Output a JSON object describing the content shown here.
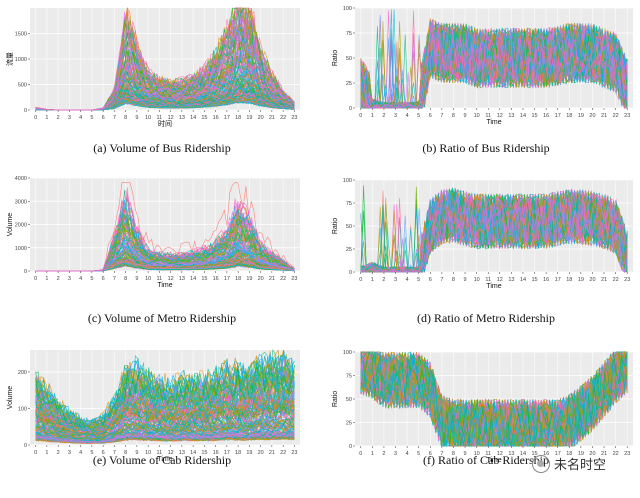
{
  "watermark": {
    "text": "未名时空",
    "icon": "wechat-logo-icon"
  },
  "chart_data": [
    {
      "type": "line",
      "caption": "(a) Volume of Bus Ridership",
      "xlabel": "时间",
      "ylabel": "流量",
      "x": [
        0,
        1,
        2,
        3,
        4,
        5,
        6,
        7,
        8,
        9,
        10,
        11,
        12,
        13,
        14,
        15,
        16,
        17,
        18,
        19,
        20,
        21,
        22,
        23
      ],
      "xlim": [
        -0.5,
        23.5
      ],
      "ylim": [
        0,
        2000
      ],
      "yticks": [
        0,
        500,
        1000,
        1500
      ],
      "grid": true,
      "series_count": 180,
      "profile_mean": [
        20,
        5,
        0,
        0,
        0,
        0,
        15,
        160,
        780,
        520,
        300,
        240,
        220,
        230,
        260,
        330,
        450,
        620,
        880,
        820,
        470,
        280,
        150,
        60
      ],
      "max_peak": 1900
    },
    {
      "type": "line",
      "caption": "(b) Ratio of Bus Ridership",
      "xlabel": "Time",
      "ylabel": "Ratio",
      "x": [
        0,
        1,
        2,
        3,
        4,
        5,
        6,
        7,
        8,
        9,
        10,
        11,
        12,
        13,
        14,
        15,
        16,
        17,
        18,
        19,
        20,
        21,
        22,
        23
      ],
      "xlim": [
        -0.5,
        23.5
      ],
      "ylim": [
        0,
        100
      ],
      "yticks": [
        0,
        25,
        50,
        75,
        100
      ],
      "grid": true,
      "series_count": 180,
      "profile_mean": [
        20,
        3,
        0,
        0,
        0,
        0,
        60,
        55,
        55,
        55,
        50,
        50,
        50,
        50,
        50,
        50,
        50,
        52,
        55,
        55,
        55,
        50,
        45,
        20
      ]
    },
    {
      "type": "line",
      "caption": "(c) Volume of Metro Ridership",
      "xlabel": "Time",
      "ylabel": "Volume",
      "x": [
        0,
        1,
        2,
        3,
        4,
        5,
        6,
        7,
        8,
        9,
        10,
        11,
        12,
        13,
        14,
        15,
        16,
        17,
        18,
        19,
        20,
        21,
        22,
        23
      ],
      "xlim": [
        -0.5,
        23.5
      ],
      "ylim": [
        0,
        4000
      ],
      "yticks": [
        0,
        1000,
        2000,
        3000,
        4000
      ],
      "grid": true,
      "series_count": 150,
      "profile_mean": [
        0,
        0,
        0,
        0,
        0,
        0,
        20,
        600,
        1300,
        700,
        350,
        300,
        280,
        290,
        320,
        380,
        480,
        700,
        1200,
        900,
        450,
        300,
        180,
        40
      ],
      "max_peak": 3800
    },
    {
      "type": "line",
      "caption": "(d) Ratio of Metro Ridership",
      "xlabel": "Time",
      "ylabel": "Ratio",
      "x": [
        0,
        1,
        2,
        3,
        4,
        5,
        6,
        7,
        8,
        9,
        10,
        11,
        12,
        13,
        14,
        15,
        16,
        17,
        18,
        19,
        20,
        21,
        22,
        23
      ],
      "xlim": [
        -0.5,
        23.5
      ],
      "ylim": [
        0,
        100
      ],
      "yticks": [
        0,
        25,
        50,
        75,
        100
      ],
      "grid": true,
      "series_count": 150,
      "profile_mean": [
        0,
        5,
        0,
        0,
        0,
        0,
        50,
        60,
        62,
        58,
        55,
        55,
        55,
        55,
        55,
        55,
        55,
        58,
        60,
        60,
        58,
        55,
        50,
        15
      ]
    },
    {
      "type": "line",
      "caption": "(e) Volume of Cab Ridership",
      "xlabel": "Time",
      "ylabel": "Volume",
      "x": [
        0,
        1,
        2,
        3,
        4,
        5,
        6,
        7,
        8,
        9,
        10,
        11,
        12,
        13,
        14,
        15,
        16,
        17,
        18,
        19,
        20,
        21,
        22,
        23
      ],
      "xlim": [
        -0.5,
        23.5
      ],
      "ylim": [
        0,
        260
      ],
      "yticks": [
        0,
        100,
        200
      ],
      "grid": true,
      "series_count": 160,
      "profile_mean": [
        75,
        60,
        45,
        35,
        28,
        25,
        30,
        50,
        80,
        85,
        75,
        70,
        65,
        70,
        70,
        70,
        75,
        85,
        80,
        80,
        90,
        90,
        95,
        85
      ],
      "max_peak": 250
    },
    {
      "type": "line",
      "caption": "(f) Ratio of Cab Ridership",
      "xlabel": "Time",
      "ylabel": "Ratio",
      "x": [
        0,
        1,
        2,
        3,
        4,
        5,
        6,
        7,
        8,
        9,
        10,
        11,
        12,
        13,
        14,
        15,
        16,
        17,
        18,
        19,
        20,
        21,
        22,
        23
      ],
      "xlim": [
        -0.5,
        23.5
      ],
      "ylim": [
        0,
        100
      ],
      "yticks": [
        0,
        25,
        50,
        75,
        100
      ],
      "grid": true,
      "series_count": 160,
      "profile_mean": [
        85,
        80,
        70,
        70,
        70,
        70,
        60,
        25,
        20,
        20,
        20,
        20,
        20,
        20,
        20,
        20,
        20,
        20,
        25,
        35,
        45,
        60,
        75,
        85
      ]
    }
  ],
  "palette": [
    "#f8766d",
    "#e58700",
    "#c99800",
    "#a3a500",
    "#6bb100",
    "#00ba38",
    "#00bf7d",
    "#00c0af",
    "#00bcd8",
    "#00b0f6",
    "#619cff",
    "#b983ff",
    "#e76bf3",
    "#fd61d1",
    "#ff67a4"
  ]
}
